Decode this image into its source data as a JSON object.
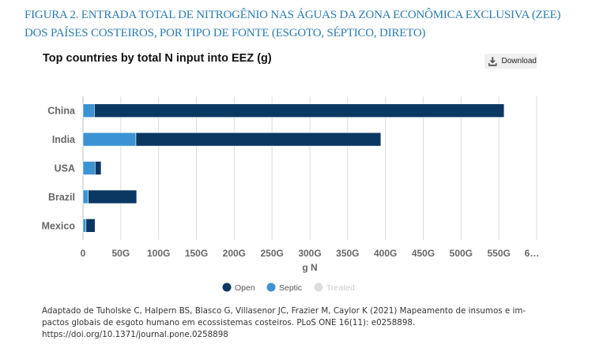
{
  "figure": {
    "title_line1": "FIGURA 2. ENTRADA TOTAL DE NITROGÊNIO NAS ÁGUAS DA ZONA ECONÔMICA EXCLUSIVA (ZEE)",
    "title_line2": "DOS PAÍSES COSTEIROS, POR TIPO DE FONTE (ESGOTO, SÉPTICO, DIRETO)"
  },
  "toolbar": {
    "download_label": "Download",
    "download_icon": "download-icon"
  },
  "citation": {
    "line1": "Adaptado de Tuholske C, Halpern BS, Blasco G, Villasenor JC, Frazier M, Caylor K (2021) Mapeamento de insumos e im-",
    "line2": "pactos globais de esgoto humano em ecossistemas costeiros. PLoS ONE 16(11): e0258898.",
    "line3": "https://doi.org/10.1371/journal.pone.0258898"
  },
  "colors": {
    "open": "#0b3763",
    "septic": "#3b93d3",
    "treated": "#dddddd",
    "grid": "#dcdcdc",
    "title": "#2a7bb0"
  },
  "chart_data": {
    "type": "bar",
    "orientation": "horizontal",
    "stacked": true,
    "title": "Top countries by total N input into EEZ (g)",
    "xlabel": "g N",
    "ylabel": "",
    "categories": [
      "China",
      "India",
      "USA",
      "Brazil",
      "Mexico"
    ],
    "series": [
      {
        "name": "Septic",
        "values": [
          15,
          70,
          16,
          7,
          4
        ],
        "color": "#3b93d3",
        "visible": true
      },
      {
        "name": "Open",
        "values": [
          542,
          324,
          8,
          64,
          12
        ],
        "color": "#0b3763",
        "visible": true
      },
      {
        "name": "Treated",
        "values": [
          0,
          0,
          0,
          0,
          0
        ],
        "color": "#dddddd",
        "visible": false
      }
    ],
    "xlim": [
      0,
      600
    ],
    "x_ticks": [
      0,
      50,
      100,
      150,
      200,
      250,
      300,
      350,
      400,
      450,
      500,
      550,
      600
    ],
    "x_tick_labels": [
      "0",
      "50G",
      "100G",
      "150G",
      "200G",
      "250G",
      "300G",
      "350G",
      "400G",
      "450G",
      "500G",
      "550G",
      "6…"
    ],
    "grid": true,
    "legend": {
      "position": "bottom-center",
      "items": [
        {
          "label": "Open",
          "color": "#0b3763",
          "active": true
        },
        {
          "label": "Septic",
          "color": "#3b93d3",
          "active": true
        },
        {
          "label": "Treated",
          "color": "#dddddd",
          "active": false
        }
      ]
    }
  }
}
